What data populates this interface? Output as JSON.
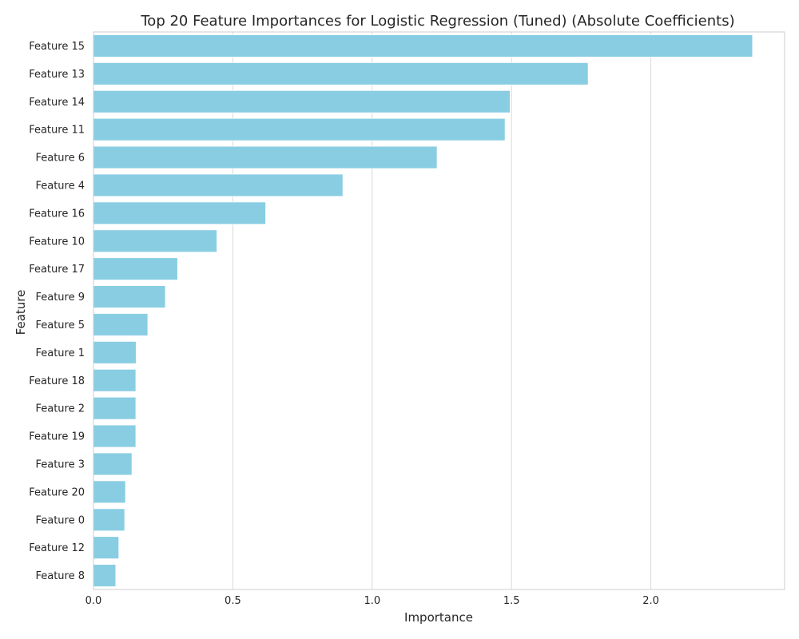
{
  "chart_data": {
    "type": "bar",
    "orientation": "horizontal",
    "title": "Top 20 Feature Importances for Logistic Regression (Tuned) (Absolute Coefficients)",
    "xlabel": "Importance",
    "ylabel": "Feature",
    "xlim": [
      0,
      2.48
    ],
    "xticks": [
      0.0,
      0.5,
      1.0,
      1.5,
      2.0
    ],
    "xtick_labels": [
      "0.0",
      "0.5",
      "1.0",
      "1.5",
      "2.0"
    ],
    "grid": "x",
    "bar_color": "#89CDE3",
    "categories": [
      "Feature 15",
      "Feature 13",
      "Feature 14",
      "Feature 11",
      "Feature 6",
      "Feature 4",
      "Feature 16",
      "Feature 10",
      "Feature 17",
      "Feature 9",
      "Feature 5",
      "Feature 1",
      "Feature 18",
      "Feature 2",
      "Feature 19",
      "Feature 3",
      "Feature 20",
      "Feature 0",
      "Feature 12",
      "Feature 8"
    ],
    "values": [
      2.365,
      1.775,
      1.495,
      1.477,
      1.233,
      0.895,
      0.618,
      0.443,
      0.302,
      0.258,
      0.195,
      0.153,
      0.152,
      0.152,
      0.152,
      0.138,
      0.115,
      0.112,
      0.091,
      0.08
    ]
  }
}
